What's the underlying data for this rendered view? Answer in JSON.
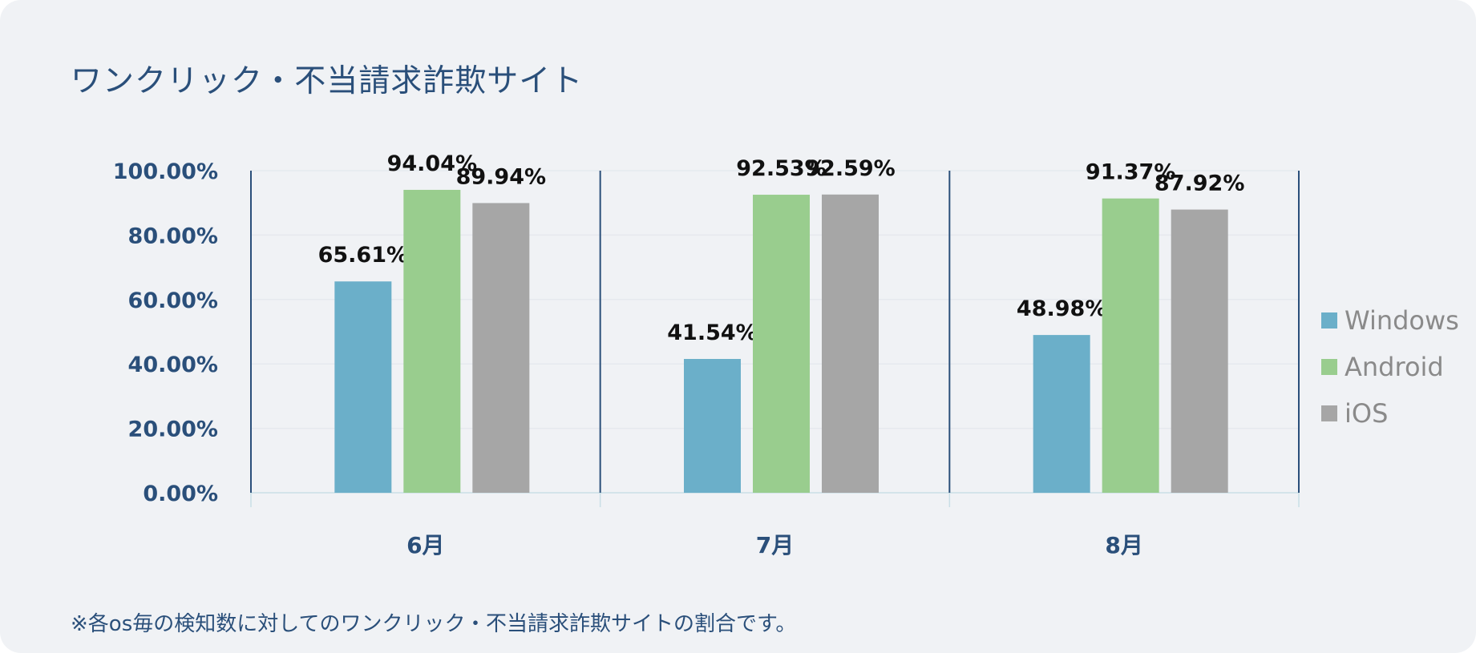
{
  "title": "ワンクリック・不当請求詐欺サイト",
  "footnote": "※各os毎の検知数に対してのワンクリック・不当請求詐欺サイトの割合です。",
  "chart_data": {
    "type": "bar",
    "categories": [
      "6月",
      "7月",
      "8月"
    ],
    "series": [
      {
        "name": "Windows",
        "color": "#6bafc9",
        "values": [
          65.61,
          41.54,
          48.98
        ],
        "labels": [
          "65.61%",
          "41.54%",
          "48.98%"
        ]
      },
      {
        "name": "Android",
        "color": "#99cd8e",
        "values": [
          94.04,
          92.53,
          91.37
        ],
        "labels": [
          "94.04%",
          "92.53%",
          "91.37%"
        ]
      },
      {
        "name": "iOS",
        "color": "#a6a6a6",
        "values": [
          89.94,
          92.59,
          87.92
        ],
        "labels": [
          "89.94%",
          "92.59%",
          "87.92%"
        ]
      }
    ],
    "ylim": [
      0,
      100
    ],
    "yticks": [
      "0.00%",
      "20.00%",
      "40.00%",
      "60.00%",
      "80.00%",
      "100.00%"
    ],
    "grid": true,
    "legend": "right",
    "colors": {
      "axis": "#2a4f7a",
      "background": "#f0f2f5"
    }
  }
}
